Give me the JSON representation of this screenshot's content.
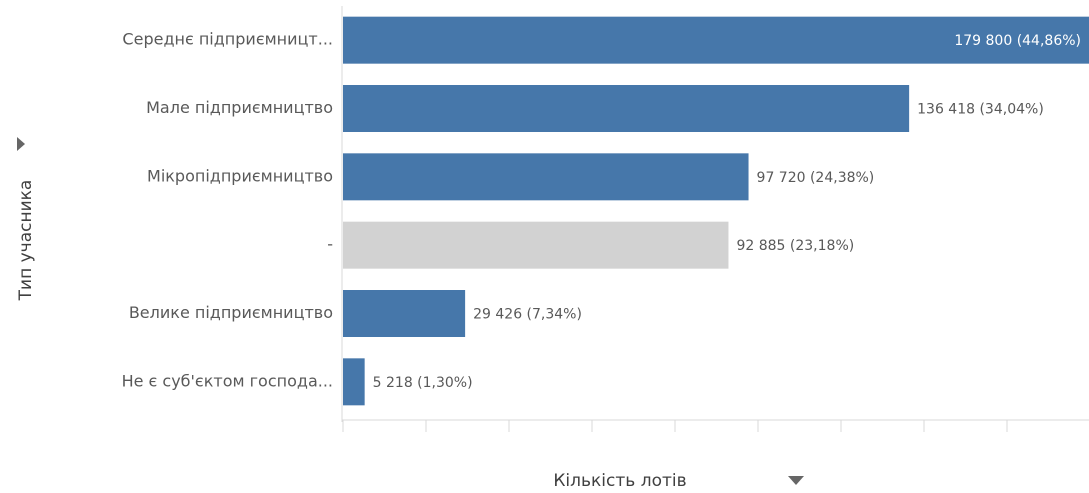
{
  "chart_data": {
    "type": "bar",
    "orientation": "horizontal",
    "y_label": "Тип учасника",
    "x_label": "Кількість лотів",
    "categories": [
      "Середнє підприємницт...",
      "Мале підприємництво",
      "Мікропідприємництво",
      "-",
      "Велике підприємництво",
      "Не є суб'єктом господа..."
    ],
    "values": [
      179800,
      136418,
      97720,
      92885,
      29426,
      5218
    ],
    "value_labels": [
      "179 800 (44,86%)",
      "136 418 (34,04%)",
      "97 720 (24,38%)",
      "92 885 (23,18%)",
      "29 426 (7,34%)",
      "5 218 (1,30%)"
    ],
    "colors": [
      "#4677aa",
      "#4677aa",
      "#4677aa",
      "#d2d2d2",
      "#4677aa",
      "#4677aa"
    ],
    "xlim": [
      0,
      180000
    ],
    "xticks": [
      0,
      20000,
      40000,
      60000,
      80000,
      100000,
      120000,
      140000,
      160000
    ]
  }
}
